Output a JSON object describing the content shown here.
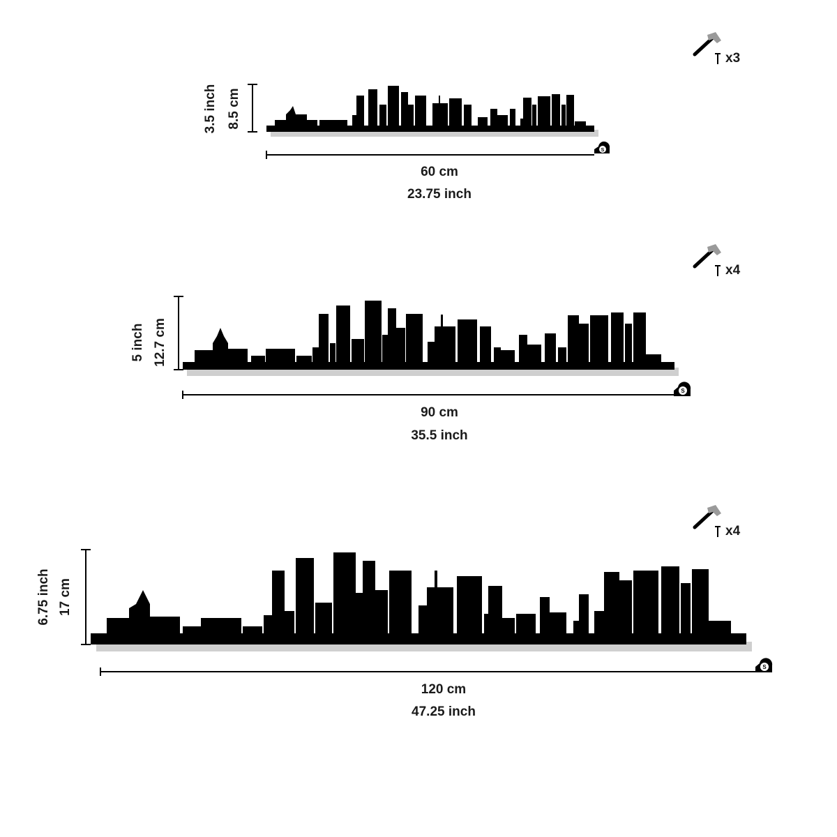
{
  "variants": [
    {
      "height_inch": "3.5 inch",
      "height_cm": "8.5 cm",
      "width_cm": "60 cm",
      "width_inch": "23.75 inch",
      "quantity": "x3",
      "hammer_icon": "hammer-icon",
      "tape_icon": "tape-measure-icon"
    },
    {
      "height_inch": "5 inch",
      "height_cm": "12.7 cm",
      "width_cm": "90 cm",
      "width_inch": "35.5 inch",
      "quantity": "x4",
      "hammer_icon": "hammer-icon",
      "tape_icon": "tape-measure-icon"
    },
    {
      "height_inch": "6.75 inch",
      "height_cm": "17 cm",
      "width_cm": "120 cm",
      "width_inch": "47.25 inch",
      "quantity": "x4",
      "hammer_icon": "hammer-icon",
      "tape_icon": "tape-measure-icon"
    }
  ],
  "colors": {
    "silhouette": "#000000",
    "shadow": "#bdbdbd",
    "hammer_head": "#9a9a9a"
  }
}
